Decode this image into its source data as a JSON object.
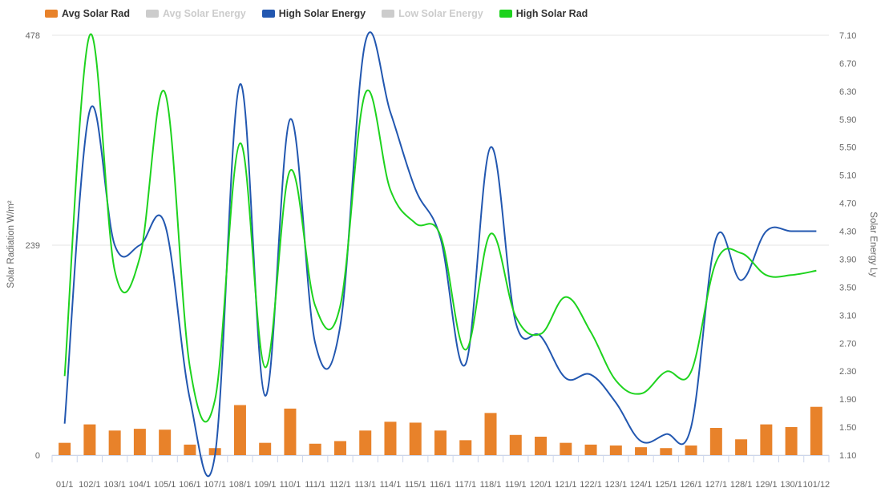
{
  "chart_data": {
    "type": "bar+line",
    "legend": [
      {
        "name": "Avg Solar Rad",
        "color": "#e8822a",
        "visible": true
      },
      {
        "name": "Avg Solar Energy",
        "color": "#cccccc",
        "visible": false
      },
      {
        "name": "High Solar Energy",
        "color": "#2257b0",
        "visible": true
      },
      {
        "name": "Low Solar Energy",
        "color": "#cccccc",
        "visible": false
      },
      {
        "name": "High Solar Rad",
        "color": "#1ed31e",
        "visible": true
      }
    ],
    "categories": [
      "01/11",
      "02/11",
      "03/11",
      "04/11",
      "05/11",
      "06/11",
      "07/11",
      "08/11",
      "09/11",
      "10/11",
      "11/11",
      "12/11",
      "13/11",
      "14/11",
      "15/11",
      "16/11",
      "17/11",
      "18/11",
      "19/11",
      "20/11",
      "21/11",
      "22/11",
      "23/11",
      "24/11",
      "25/11",
      "26/11",
      "27/11",
      "28/11",
      "29/11",
      "30/11",
      "01/12"
    ],
    "x_tick_labels": [
      "01/1",
      "102/1",
      "103/1",
      "104/1",
      "105/1",
      "106/1",
      "107/1",
      "108/1",
      "109/1",
      "110/1",
      "111/1",
      "112/1",
      "113/1",
      "114/1",
      "115/1",
      "116/1",
      "117/1",
      "118/1",
      "119/1",
      "120/1",
      "121/1",
      "122/1",
      "123/1",
      "124/1",
      "125/1",
      "126/1",
      "127/1",
      "128/1",
      "129/1",
      "130/1",
      "101/12"
    ],
    "series": [
      {
        "name": "Avg Solar Rad",
        "type": "bar",
        "axis": "left",
        "color": "#e8822a",
        "values": [
          14,
          35,
          28,
          30,
          29,
          12,
          8,
          57,
          14,
          53,
          13,
          16,
          28,
          38,
          37,
          28,
          17,
          48,
          23,
          21,
          14,
          12,
          11,
          9,
          8,
          11,
          31,
          18,
          35,
          32,
          55
        ]
      },
      {
        "name": "High Solar Energy",
        "type": "line",
        "axis": "right",
        "color": "#2257b0",
        "values": [
          1.55,
          6.02,
          4.1,
          4.1,
          4.4,
          1.9,
          1.1,
          6.4,
          1.95,
          5.9,
          2.7,
          2.95,
          7.0,
          6.0,
          4.9,
          4.2,
          2.4,
          5.5,
          3.0,
          2.8,
          2.2,
          2.25,
          1.85,
          1.3,
          1.4,
          1.5,
          4.2,
          3.6,
          4.3,
          4.3,
          4.3
        ]
      },
      {
        "name": "High Solar Rad",
        "type": "line",
        "axis": "left",
        "color": "#1ed31e",
        "values": [
          90,
          478,
          210,
          225,
          413,
          100,
          63,
          355,
          100,
          324,
          170,
          170,
          412,
          302,
          264,
          250,
          120,
          252,
          158,
          138,
          180,
          140,
          85,
          70,
          95,
          95,
          220,
          230,
          205,
          205,
          210
        ]
      }
    ],
    "y_left": {
      "label": "Solar Radiation W/m²",
      "min": 0,
      "max": 478,
      "ticks": [
        "0",
        "239",
        "478"
      ]
    },
    "y_right": {
      "label": "Solar Energy Ly",
      "min": 1.1,
      "max": 7.1,
      "ticks": [
        "1.10",
        "1.50",
        "1.90",
        "2.30",
        "2.70",
        "3.10",
        "3.50",
        "3.90",
        "4.30",
        "4.70",
        "5.10",
        "5.50",
        "5.90",
        "6.30",
        "6.70",
        "7.10"
      ]
    },
    "grid": true,
    "legend_position": "top-left"
  }
}
